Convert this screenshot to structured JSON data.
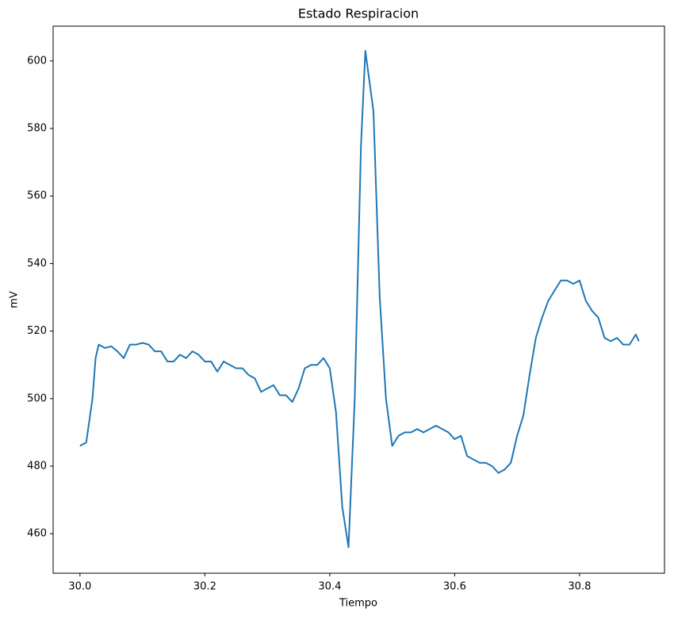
{
  "chart_data": {
    "type": "line",
    "title": "Estado Respiracion",
    "xlabel": "Tiempo",
    "ylabel": "mV",
    "x": [
      30.0,
      30.01,
      30.02,
      30.025,
      30.03,
      30.04,
      30.05,
      30.06,
      30.07,
      30.08,
      30.09,
      30.1,
      30.11,
      30.12,
      30.13,
      30.14,
      30.15,
      30.16,
      30.17,
      30.18,
      30.19,
      30.2,
      30.21,
      30.22,
      30.23,
      30.24,
      30.25,
      30.26,
      30.27,
      30.28,
      30.29,
      30.3,
      30.31,
      30.32,
      30.33,
      30.34,
      30.35,
      30.36,
      30.37,
      30.38,
      30.39,
      30.4,
      30.41,
      30.42,
      30.43,
      30.44,
      30.45,
      30.457,
      30.47,
      30.48,
      30.49,
      30.5,
      30.51,
      30.52,
      30.53,
      30.54,
      30.55,
      30.56,
      30.57,
      30.58,
      30.59,
      30.6,
      30.61,
      30.62,
      30.63,
      30.64,
      30.65,
      30.66,
      30.67,
      30.68,
      30.69,
      30.7,
      30.71,
      30.72,
      30.73,
      30.74,
      30.75,
      30.76,
      30.77,
      30.78,
      30.79,
      30.8,
      30.81,
      30.82,
      30.83,
      30.84,
      30.85,
      30.86,
      30.87,
      30.88,
      30.89,
      30.895
    ],
    "values": [
      486,
      487,
      500,
      512,
      516,
      515,
      515.5,
      514,
      512,
      516,
      516,
      516.5,
      516,
      514,
      514,
      511,
      511,
      513,
      512,
      514,
      513,
      511,
      511,
      508,
      511,
      510,
      509,
      509,
      507,
      506,
      502,
      503,
      504,
      501,
      501,
      499,
      503,
      509,
      510,
      510,
      512,
      509,
      496,
      468,
      456,
      500,
      575,
      603,
      585,
      530,
      500,
      486,
      489,
      490,
      490,
      491,
      490,
      491,
      492,
      491,
      490,
      488,
      489,
      483,
      482,
      481,
      481,
      480,
      478,
      479,
      481,
      489,
      495,
      507,
      518,
      524,
      529,
      532,
      535,
      535,
      534,
      535,
      529,
      526,
      524,
      518,
      517,
      518,
      516,
      516,
      519,
      517
    ],
    "color": "#1f77b4",
    "xlim": [
      29.957,
      30.936
    ],
    "ylim": [
      448.3,
      610.3
    ],
    "xticks": [
      {
        "value": 30.0,
        "label": "30.0"
      },
      30.2,
      30.4,
      30.6,
      30.8
    ],
    "yticks": [
      460,
      480,
      500,
      520,
      540,
      560,
      580,
      600
    ]
  }
}
